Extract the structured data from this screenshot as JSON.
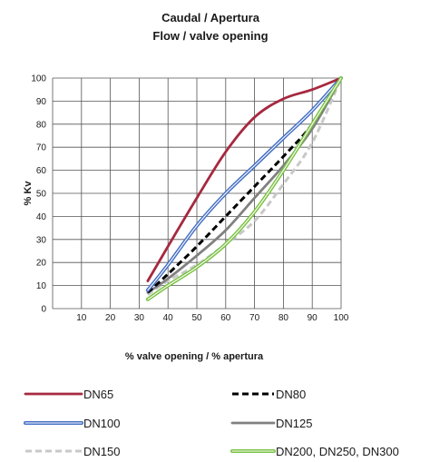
{
  "chart_data": {
    "type": "line",
    "title": "Caudal / Apertura",
    "subtitle": "Flow / valve opening",
    "xlabel": "% valve opening / % apertura",
    "ylabel": "% Kv",
    "xlim": [
      0,
      100
    ],
    "ylim": [
      0,
      100
    ],
    "x_ticks": [
      "10",
      "20",
      "30",
      "40",
      "50",
      "60",
      "70",
      "80",
      "90",
      "100"
    ],
    "y_ticks": [
      "0",
      "10",
      "20",
      "30",
      "40",
      "50",
      "60",
      "70",
      "80",
      "90",
      "100"
    ],
    "grid": true,
    "legend_position": "bottom",
    "series": [
      {
        "name": "DN65",
        "color": "#a6293f",
        "line_style": "solid",
        "x": [
          33,
          40,
          50,
          60,
          70,
          80,
          90,
          100
        ],
        "y": [
          12,
          27,
          48,
          68,
          83,
          91,
          95,
          100
        ]
      },
      {
        "name": "DN80",
        "color": "#000000",
        "line_style": "dashed",
        "x": [
          33,
          40,
          50,
          60,
          70,
          80,
          90,
          100
        ],
        "y": [
          7,
          15,
          27,
          40,
          53,
          66,
          80,
          100
        ]
      },
      {
        "name": "DN100",
        "color": "#4570c4",
        "line_style": "double",
        "x": [
          33,
          40,
          50,
          60,
          70,
          80,
          90,
          100
        ],
        "y": [
          8,
          19,
          36,
          50,
          62,
          74,
          86,
          100
        ]
      },
      {
        "name": "DN125",
        "color": "#808080",
        "line_style": "solid",
        "x": [
          33,
          40,
          50,
          60,
          70,
          80,
          90,
          100
        ],
        "y": [
          7,
          13,
          23,
          34,
          48,
          62,
          78,
          100
        ]
      },
      {
        "name": "DN150",
        "color": "#c8c8c8",
        "line_style": "dashed",
        "x": [
          33,
          40,
          50,
          60,
          70,
          80,
          90,
          100
        ],
        "y": [
          6,
          12,
          19,
          28,
          38,
          54,
          72,
          100
        ]
      },
      {
        "name": "DN200, DN250, DN300",
        "color": "#7ac143",
        "line_style": "double",
        "x": [
          33,
          40,
          50,
          60,
          70,
          80,
          90,
          100
        ],
        "y": [
          4,
          10,
          18,
          28,
          42,
          60,
          80,
          100
        ]
      }
    ]
  }
}
